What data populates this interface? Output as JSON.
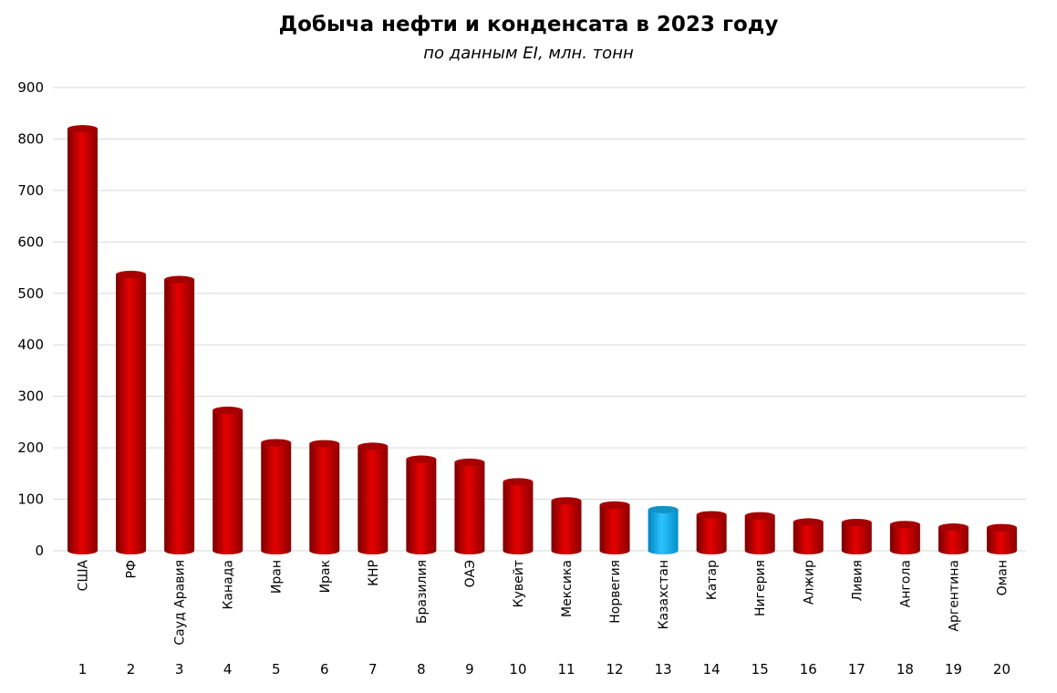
{
  "chart_data": {
    "type": "bar",
    "title": "Добыча нефти и конденсата в 2023 году",
    "subtitle": "по данным EI, млн. тонн",
    "xlabel": "",
    "ylabel": "",
    "ylim": [
      0,
      900
    ],
    "yticks": [
      0,
      100,
      200,
      300,
      400,
      500,
      600,
      700,
      800,
      900
    ],
    "grid": true,
    "legend": "none",
    "categories": [
      "США",
      "РФ",
      "Сауд Аравия",
      "Канада",
      "Иран",
      "Ирак",
      "КНР",
      "Бразилия",
      "ОАЭ",
      "Кувейт",
      "Мексика",
      "Норвегия",
      "Казахстан",
      "Катар",
      "Нигерия",
      "Алжир",
      "Ливия",
      "Ангола",
      "Аргентина",
      "Оман"
    ],
    "ranks": [
      "1",
      "2",
      "3",
      "4",
      "5",
      "6",
      "7",
      "8",
      "9",
      "10",
      "11",
      "12",
      "13",
      "14",
      "15",
      "16",
      "17",
      "18",
      "19",
      "20"
    ],
    "values": [
      820,
      537,
      527,
      273,
      210,
      208,
      203,
      178,
      172,
      134,
      97,
      89,
      80,
      70,
      68,
      56,
      55,
      51,
      46,
      45
    ],
    "bar_color": "#c00000",
    "highlight_color": "#00b0f0",
    "highlight_category": "Казахстан"
  }
}
